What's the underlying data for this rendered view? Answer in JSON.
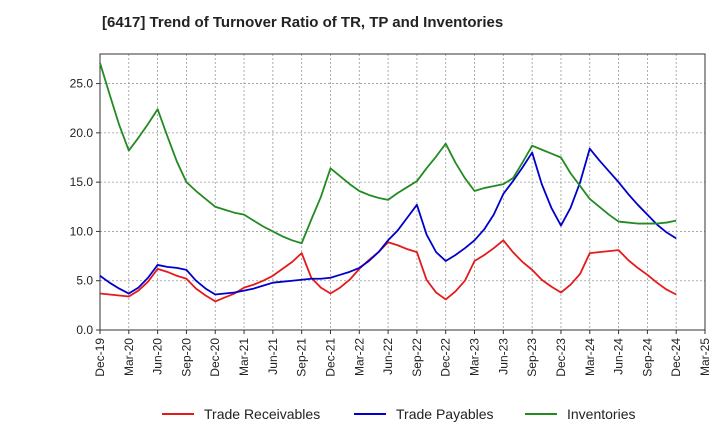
{
  "chart_data": {
    "type": "line",
    "title": "[6417]  Trend of Turnover Ratio of TR, TP and Inventories",
    "xlabel": "",
    "ylabel": "",
    "ylim": [
      0,
      28
    ],
    "yticks": [
      "0.0",
      "5.0",
      "10.0",
      "15.0",
      "20.0",
      "25.0"
    ],
    "ytick_values": [
      0,
      5,
      10,
      15,
      20,
      25
    ],
    "xtick_labels": [
      "Dec-19",
      "Mar-20",
      "Jun-20",
      "Sep-20",
      "Dec-20",
      "Mar-21",
      "Jun-21",
      "Sep-21",
      "Dec-21",
      "Mar-22",
      "Jun-22",
      "Sep-22",
      "Dec-22",
      "Mar-23",
      "Jun-23",
      "Sep-23",
      "Dec-23",
      "Mar-24",
      "Jun-24",
      "Sep-24",
      "Dec-24",
      "Mar-25"
    ],
    "x": [
      "2019-12",
      "2020-01",
      "2020-02",
      "2020-03",
      "2020-04",
      "2020-05",
      "2020-06",
      "2020-07",
      "2020-08",
      "2020-09",
      "2020-10",
      "2020-11",
      "2020-12",
      "2021-01",
      "2021-02",
      "2021-03",
      "2021-04",
      "2021-05",
      "2021-06",
      "2021-07",
      "2021-08",
      "2021-09",
      "2021-10",
      "2021-11",
      "2021-12",
      "2022-01",
      "2022-02",
      "2022-03",
      "2022-04",
      "2022-05",
      "2022-06",
      "2022-07",
      "2022-08",
      "2022-09",
      "2022-10",
      "2022-11",
      "2022-12",
      "2023-01",
      "2023-02",
      "2023-03",
      "2023-04",
      "2023-05",
      "2023-06",
      "2023-07",
      "2023-08",
      "2023-09",
      "2023-10",
      "2023-11",
      "2023-12",
      "2024-01",
      "2024-02",
      "2024-03",
      "2024-04",
      "2024-05",
      "2024-06",
      "2024-07",
      "2024-08",
      "2024-09",
      "2024-10",
      "2024-11",
      "2024-12"
    ],
    "grid": true,
    "legend_position": "bottom",
    "series": [
      {
        "name": "Trade Receivables",
        "color": "#e41a1c",
        "values": [
          3.7,
          3.6,
          3.5,
          3.4,
          4.0,
          4.9,
          6.2,
          5.9,
          5.5,
          5.2,
          4.2,
          3.5,
          2.9,
          3.3,
          3.7,
          4.3,
          4.6,
          5.0,
          5.5,
          6.2,
          6.9,
          7.8,
          5.3,
          4.3,
          3.7,
          4.3,
          5.1,
          6.2,
          7.1,
          7.9,
          8.9,
          8.6,
          8.2,
          7.9,
          5.1,
          3.8,
          3.1,
          3.9,
          5.0,
          7.0,
          7.6,
          8.3,
          9.1,
          7.9,
          6.9,
          6.1,
          5.1,
          4.4,
          3.8,
          4.6,
          5.7,
          7.8,
          7.9,
          8.0,
          8.1,
          7.1,
          6.3,
          5.6,
          4.8,
          4.1,
          3.6
        ]
      },
      {
        "name": "Trade Payables",
        "color": "#0000cc",
        "values": [
          5.5,
          4.8,
          4.2,
          3.7,
          4.3,
          5.3,
          6.6,
          6.4,
          6.3,
          6.1,
          5.0,
          4.2,
          3.6,
          3.7,
          3.8,
          4.0,
          4.2,
          4.5,
          4.8,
          4.9,
          5.0,
          5.1,
          5.2,
          5.2,
          5.3,
          5.6,
          5.9,
          6.3,
          7.0,
          7.9,
          9.1,
          10.1,
          11.4,
          12.7,
          9.7,
          7.9,
          7.0,
          7.6,
          8.3,
          9.1,
          10.2,
          11.7,
          13.8,
          15.1,
          16.5,
          18.0,
          14.8,
          12.4,
          10.6,
          12.4,
          15.0,
          18.4,
          17.2,
          16.1,
          15.0,
          13.8,
          12.7,
          11.7,
          10.7,
          9.9,
          9.3
        ]
      },
      {
        "name": "Inventories",
        "color": "#228b22",
        "values": [
          27.1,
          23.9,
          20.8,
          18.2,
          19.5,
          20.9,
          22.4,
          19.7,
          17.1,
          15.0,
          14.1,
          13.3,
          12.5,
          12.2,
          11.9,
          11.7,
          11.1,
          10.5,
          10.0,
          9.5,
          9.1,
          8.8,
          11.2,
          13.5,
          16.4,
          15.6,
          14.8,
          14.1,
          13.7,
          13.4,
          13.2,
          13.9,
          14.5,
          15.1,
          16.4,
          17.6,
          18.9,
          17.0,
          15.4,
          14.1,
          14.4,
          14.6,
          14.8,
          15.4,
          17.0,
          18.7,
          18.3,
          17.9,
          17.5,
          15.9,
          14.6,
          13.3,
          12.5,
          11.7,
          11.0,
          10.9,
          10.8,
          10.8,
          10.8,
          10.9,
          11.1
        ]
      }
    ]
  }
}
